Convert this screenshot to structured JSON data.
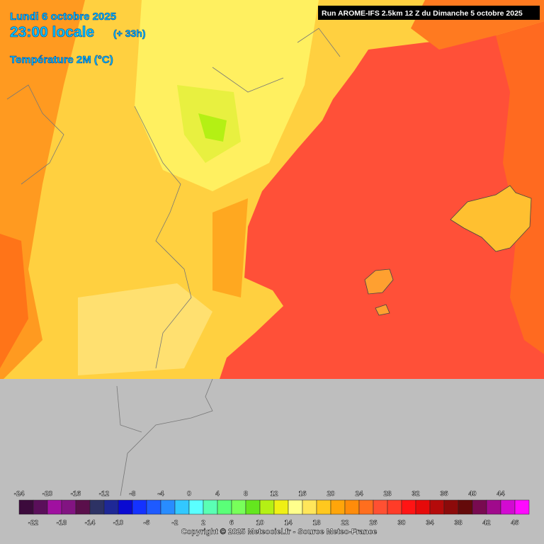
{
  "header": {
    "date": "Lundi 6 octobre 2025",
    "time": "23:00 locale",
    "lead": "(+ 33h)",
    "variable": "Température 2M (°C)",
    "run": "Run AROME-IFS 2.5km 12 Z du Dimanche 5 octobre 2025"
  },
  "legend": {
    "ticks": [
      -24,
      -22,
      -20,
      -18,
      -16,
      -14,
      -12,
      -10,
      -8,
      -6,
      -4,
      -2,
      0,
      2,
      4,
      6,
      8,
      10,
      12,
      14,
      16,
      18,
      20,
      22,
      24,
      26,
      28,
      30,
      32,
      34,
      36,
      38,
      40,
      42,
      44,
      46
    ],
    "colors": [
      "#3c0a3c",
      "#5a0f5a",
      "#a010a0",
      "#821482",
      "#5a0f4b",
      "#2d3264",
      "#1e2896",
      "#0a0ad2",
      "#1432ff",
      "#1e5aff",
      "#288cff",
      "#32c8ff",
      "#5affff",
      "#5affb4",
      "#5aff78",
      "#78ff5a",
      "#64e61e",
      "#b4f014",
      "#f0f014",
      "#ffff8c",
      "#ffe65a",
      "#ffc81e",
      "#ffa50a",
      "#ff8c0a",
      "#ff6e1e",
      "#ff5032",
      "#ff3c28",
      "#ff1414",
      "#e60a0a",
      "#b40a0a",
      "#8c0a0a",
      "#640a0a",
      "#780a50",
      "#a00a8c",
      "#d20ad2",
      "#ff0aff"
    ]
  },
  "copyright": "Copyright © 2025 Meteociel.fr - Source Meteo-France"
}
